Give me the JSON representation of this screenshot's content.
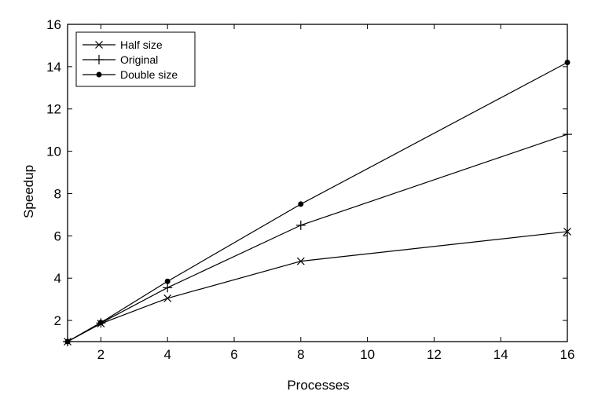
{
  "chart_data": {
    "type": "line",
    "title": "",
    "xlabel": "Processes",
    "ylabel": "Speedup",
    "xlim": [
      1,
      16
    ],
    "ylim": [
      1,
      16
    ],
    "xticks": [
      2,
      4,
      6,
      8,
      10,
      12,
      14,
      16
    ],
    "yticks": [
      2,
      4,
      6,
      8,
      10,
      12,
      14,
      16
    ],
    "x": [
      1,
      2,
      4,
      8,
      16
    ],
    "grid": false,
    "legend_position": "top-left",
    "series": [
      {
        "name": "Half size",
        "marker": "x",
        "values": [
          1,
          1.85,
          3.05,
          4.8,
          6.2
        ]
      },
      {
        "name": "Original",
        "marker": "plus",
        "values": [
          1,
          1.88,
          3.55,
          6.5,
          10.8
        ]
      },
      {
        "name": "Double size",
        "marker": "dot",
        "values": [
          1,
          1.9,
          3.85,
          7.5,
          14.2
        ]
      }
    ]
  }
}
